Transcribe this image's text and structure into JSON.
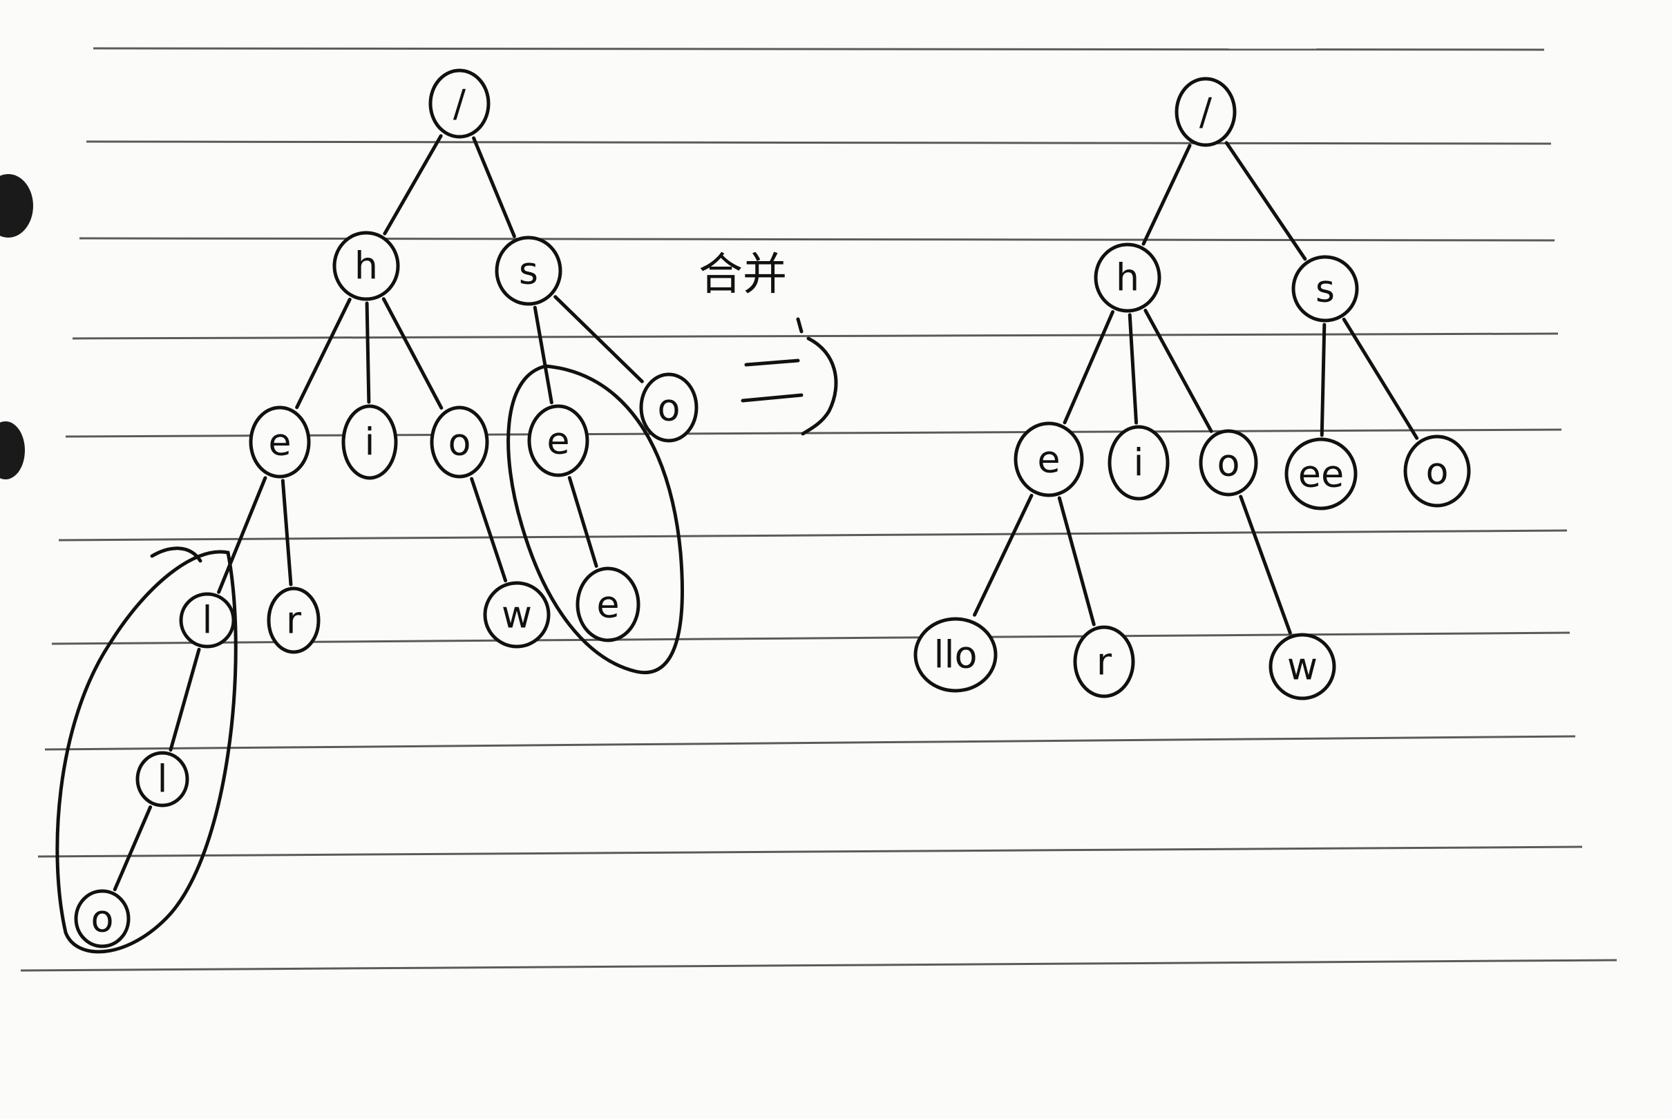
{
  "merge_label": "合并",
  "left_tree": {
    "nodes": [
      {
        "id": "root",
        "label": "/"
      },
      {
        "id": "h",
        "label": "h"
      },
      {
        "id": "s",
        "label": "s"
      },
      {
        "id": "e",
        "label": "e"
      },
      {
        "id": "i",
        "label": "i"
      },
      {
        "id": "o",
        "label": "o"
      },
      {
        "id": "se",
        "label": "e"
      },
      {
        "id": "so",
        "label": "o"
      },
      {
        "id": "l1",
        "label": "l"
      },
      {
        "id": "r",
        "label": "r"
      },
      {
        "id": "w",
        "label": "w"
      },
      {
        "id": "see",
        "label": "e"
      },
      {
        "id": "l2",
        "label": "l"
      },
      {
        "id": "lo",
        "label": "o"
      }
    ],
    "edges": [
      [
        "root",
        "h"
      ],
      [
        "root",
        "s"
      ],
      [
        "h",
        "e"
      ],
      [
        "h",
        "i"
      ],
      [
        "h",
        "o"
      ],
      [
        "s",
        "se"
      ],
      [
        "s",
        "so"
      ],
      [
        "e",
        "l1"
      ],
      [
        "e",
        "r"
      ],
      [
        "o",
        "w"
      ],
      [
        "se",
        "see"
      ],
      [
        "l1",
        "l2"
      ],
      [
        "l2",
        "lo"
      ]
    ],
    "circled_groups": [
      [
        "l1",
        "l2",
        "lo"
      ],
      [
        "se",
        "see"
      ]
    ]
  },
  "right_tree": {
    "nodes": [
      {
        "id": "root",
        "label": "/"
      },
      {
        "id": "h",
        "label": "h"
      },
      {
        "id": "s",
        "label": "s"
      },
      {
        "id": "e",
        "label": "e"
      },
      {
        "id": "i",
        "label": "i"
      },
      {
        "id": "o",
        "label": "o"
      },
      {
        "id": "ee",
        "label": "ee"
      },
      {
        "id": "so",
        "label": "o"
      },
      {
        "id": "llo",
        "label": "llo"
      },
      {
        "id": "r",
        "label": "r"
      },
      {
        "id": "w",
        "label": "w"
      }
    ],
    "edges": [
      [
        "root",
        "h"
      ],
      [
        "root",
        "s"
      ],
      [
        "h",
        "e"
      ],
      [
        "h",
        "i"
      ],
      [
        "h",
        "o"
      ],
      [
        "s",
        "ee"
      ],
      [
        "s",
        "so"
      ],
      [
        "e",
        "llo"
      ],
      [
        "e",
        "r"
      ],
      [
        "o",
        "w"
      ]
    ]
  },
  "colors": {
    "ink": "#111111",
    "paper": "#fbfbf9",
    "rule": "#5a5a5a"
  }
}
